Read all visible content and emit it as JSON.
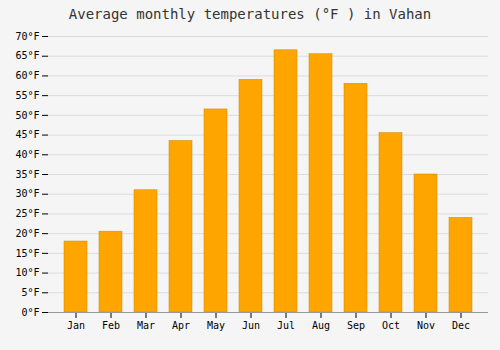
{
  "chart_data": {
    "type": "bar",
    "title": "Average monthly temperatures (°F ) in Vahan",
    "categories": [
      "Jan",
      "Feb",
      "Mar",
      "Apr",
      "May",
      "Jun",
      "Jul",
      "Aug",
      "Sep",
      "Oct",
      "Nov",
      "Dec"
    ],
    "values": [
      18,
      20.5,
      31,
      43.5,
      51.5,
      59,
      66.5,
      65.5,
      58,
      45.5,
      35,
      24
    ],
    "color": "#FFA500",
    "ylim": [
      0,
      70
    ],
    "yticks": [
      {
        "value": 0,
        "label": "0°F"
      },
      {
        "value": 5,
        "label": "5°F"
      },
      {
        "value": 10,
        "label": "10°F"
      },
      {
        "value": 15,
        "label": "15°F"
      },
      {
        "value": 20,
        "label": "20°F"
      },
      {
        "value": 25,
        "label": "25°F"
      },
      {
        "value": 30,
        "label": "30°F"
      },
      {
        "value": 35,
        "label": "35°F"
      },
      {
        "value": 40,
        "label": "40°F"
      },
      {
        "value": 45,
        "label": "45°F"
      },
      {
        "value": 50,
        "label": "50°F"
      },
      {
        "value": 55,
        "label": "55°F"
      },
      {
        "value": 60,
        "label": "60°F"
      },
      {
        "value": 65,
        "label": "65°F"
      },
      {
        "value": 70,
        "label": "70°F"
      }
    ],
    "grid": true
  }
}
